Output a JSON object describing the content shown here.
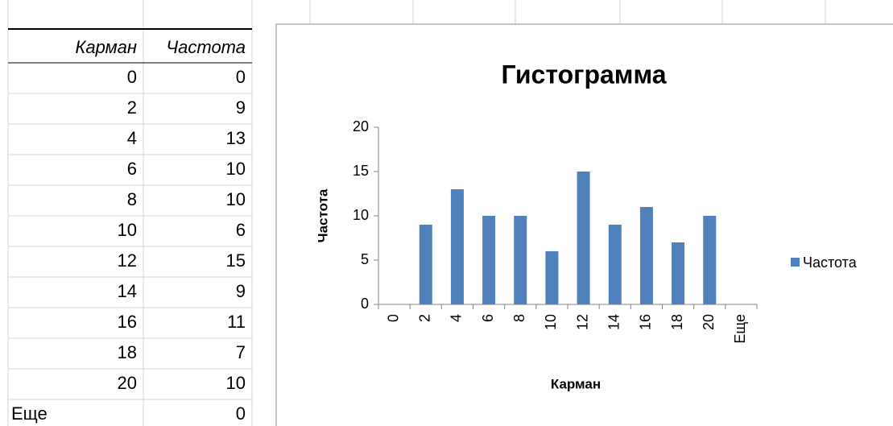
{
  "table": {
    "header": [
      "Карман",
      "Частота"
    ],
    "rows": [
      [
        0,
        0
      ],
      [
        2,
        9
      ],
      [
        4,
        13
      ],
      [
        6,
        10
      ],
      [
        8,
        10
      ],
      [
        10,
        6
      ],
      [
        12,
        15
      ],
      [
        14,
        9
      ],
      [
        16,
        11
      ],
      [
        18,
        7
      ],
      [
        20,
        10
      ],
      [
        "Еще",
        0
      ]
    ]
  },
  "chart_data": {
    "type": "bar",
    "title": "Гистограмма",
    "x_label": "Карман",
    "y_label": "Частота",
    "categories": [
      "0",
      "2",
      "4",
      "6",
      "8",
      "10",
      "12",
      "14",
      "16",
      "18",
      "20",
      "Еще"
    ],
    "series": [
      {
        "name": "Частота",
        "color": "#4f81bd",
        "values": [
          0,
          9,
          13,
          10,
          10,
          6,
          15,
          9,
          11,
          7,
          10,
          0
        ]
      }
    ],
    "ylim": [
      0,
      20
    ],
    "yticks": [
      0,
      5,
      10,
      15,
      20
    ],
    "legend": "right"
  }
}
